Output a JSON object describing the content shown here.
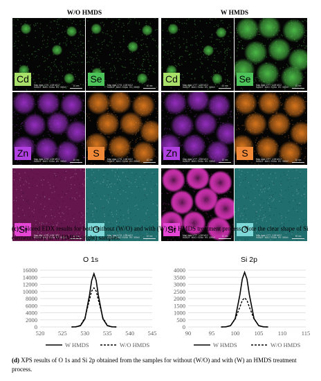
{
  "headers": {
    "left": "W/O HMDS",
    "right": "W HMDS"
  },
  "tile_meta": {
    "left": "Map data 1776  1/28 MC2\nHAADF  MAG: 910kx  HV: 300kV",
    "right": "Map data 1777  1/28 MC2\nHAADF  MAG: 910kx  HV: 300kV"
  },
  "scale_bar": "10 nm",
  "tiles": [
    {
      "panel": "wo",
      "element": "Cd",
      "color": "#4ec24a",
      "label_bg": "#a8e06a",
      "pattern": "sparse"
    },
    {
      "panel": "wo",
      "element": "Se",
      "color": "#4ec24a",
      "label_bg": "#4cc45a",
      "pattern": "sparse"
    },
    {
      "panel": "wo",
      "element": "Zn",
      "color": "#9b2fc8",
      "label_bg": "#b041e0",
      "pattern": "dots"
    },
    {
      "panel": "wo",
      "element": "S",
      "color": "#e07a1e",
      "label_bg": "#f08a38",
      "pattern": "dots"
    },
    {
      "panel": "wo",
      "element": "Si",
      "color": "#b8288a",
      "label_bg": "#e646d6",
      "pattern": "uniform"
    },
    {
      "panel": "wo",
      "element": "O",
      "color": "#3cc8c8",
      "label_bg": "#7fd8d8",
      "pattern": "uniform"
    },
    {
      "panel": "w",
      "element": "Cd",
      "color": "#4ec24a",
      "label_bg": "#a8e06a",
      "pattern": "sparse"
    },
    {
      "panel": "w",
      "element": "Se",
      "color": "#4ec24a",
      "label_bg": "#4cc45a",
      "pattern": "dots"
    },
    {
      "panel": "w",
      "element": "Zn",
      "color": "#9b2fc8",
      "label_bg": "#b041e0",
      "pattern": "dots"
    },
    {
      "panel": "w",
      "element": "S",
      "color": "#e07a1e",
      "label_bg": "#f08a38",
      "pattern": "dots"
    },
    {
      "panel": "w",
      "element": "Si",
      "color": "#c52fa8",
      "label_bg": "#e646d6",
      "pattern": "shell"
    },
    {
      "panel": "w",
      "element": "O",
      "color": "#3cc8c8",
      "label_bg": "#7fd8d8",
      "pattern": "uniform"
    }
  ],
  "caption_c": {
    "tag": "(c)",
    "text": " Colored EDX results for both without (W/O) and with (W) the HMDS treatment process. Note the clear shape of Si elements only in W HMDS (right) samples."
  },
  "caption_d": {
    "tag": "(d)",
    "text": " XPS results of O 1s and Si 2p obtained from the samples for without (W/O) and with (W) an HMDS treatment process."
  },
  "chart_data": [
    {
      "type": "line",
      "title": "O 1s",
      "xlim": [
        520,
        545
      ],
      "ylim": [
        0,
        16000
      ],
      "x_ticks": [
        520,
        525,
        530,
        535,
        540,
        545
      ],
      "y_ticks": [
        0,
        2000,
        4000,
        6000,
        8000,
        10000,
        12000,
        14000,
        16000
      ],
      "series": [
        {
          "name": "W HMDS",
          "style": "solid",
          "peak_x": 532,
          "peak_y": 15000,
          "x": [
            527,
            528,
            529,
            530,
            531,
            531.5,
            532,
            532.5,
            533,
            534,
            535,
            536,
            537
          ],
          "y": [
            0,
            30,
            350,
            2300,
            8900,
            13100,
            15000,
            13100,
            8900,
            2300,
            350,
            30,
            0
          ]
        },
        {
          "name": "W/O HMDS",
          "style": "dashed",
          "peak_x": 532,
          "peak_y": 11000,
          "x": [
            527,
            528,
            529,
            530,
            531,
            531.5,
            532,
            532.5,
            533,
            534,
            535,
            536,
            537
          ],
          "y": [
            0,
            50,
            450,
            2600,
            7600,
            10100,
            11000,
            10100,
            7600,
            2600,
            450,
            50,
            0
          ]
        }
      ],
      "legend": "bottom"
    },
    {
      "type": "line",
      "title": "Si 2p",
      "xlim": [
        90,
        115
      ],
      "ylim": [
        0,
        4000
      ],
      "x_ticks": [
        90,
        95,
        100,
        105,
        110,
        115
      ],
      "y_ticks": [
        0,
        500,
        1000,
        1500,
        2000,
        2500,
        3000,
        3500,
        4000
      ],
      "series": [
        {
          "name": "W HMDS",
          "style": "solid",
          "peak_x": 102,
          "peak_y": 3850,
          "x": [
            97,
            98,
            99,
            100,
            101,
            101.5,
            102,
            102.5,
            103,
            104,
            105,
            106,
            107
          ],
          "y": [
            0,
            10,
            90,
            590,
            2280,
            3370,
            3850,
            3370,
            2280,
            590,
            90,
            10,
            0
          ]
        },
        {
          "name": "W/O HMDS",
          "style": "dashed",
          "peak_x": 102,
          "peak_y": 2050,
          "x": [
            97,
            98,
            99,
            100,
            101,
            101.5,
            102,
            102.5,
            103,
            104,
            105,
            106,
            107
          ],
          "y": [
            0,
            10,
            100,
            560,
            1410,
            1880,
            2050,
            1880,
            1410,
            560,
            100,
            10,
            0
          ]
        }
      ],
      "legend": "bottom"
    }
  ]
}
